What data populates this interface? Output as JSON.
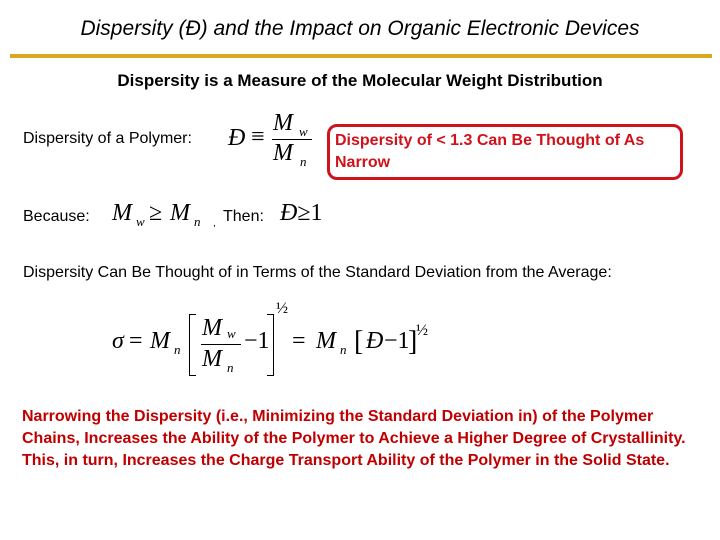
{
  "title": "Dispersity (Đ) and the Impact on Organic Electronic Devices",
  "subtitle": "Dispersity is a Measure of the Molecular Weight Distribution",
  "definition_label": "Dispersity of a Polymer:",
  "eq1": {
    "lhs": "Đ",
    "op": "≡",
    "num": "M",
    "num_sub": "w",
    "den": "M",
    "den_sub": "n"
  },
  "note": "Dispersity of < 1.3 Can Be Thought of As Narrow",
  "because_label": "Because:",
  "eq2": {
    "a": "M",
    "a_sub": "w",
    "op": "≥",
    "b": "M",
    "b_sub": "n",
    "comma": ","
  },
  "then_label": "Then:",
  "eq3": {
    "lhs": "Đ",
    "op": "≥",
    "rhs": "1"
  },
  "std_dev_text": "Dispersity Can Be Thought of in Terms of the Standard Deviation from the Average:",
  "eq4": {
    "sigma": "σ",
    "eq": "=",
    "M": "M",
    "n": "n",
    "w": "w",
    "minus_one": "−1",
    "half": "½",
    "D": "Đ"
  },
  "conclusion": "Narrowing the Dispersity (i.e., Minimizing the Standard Deviation in) of the Polymer Chains, Increases the Ability of the Polymer to Achieve a Higher Degree of Crystallinity. This, in turn, Increases the Charge Transport Ability of the Polymer in the Solid State.",
  "colors": {
    "accent_rule": "#d9a81e",
    "highlight": "#d0121b",
    "conclusion": "#c00000"
  }
}
